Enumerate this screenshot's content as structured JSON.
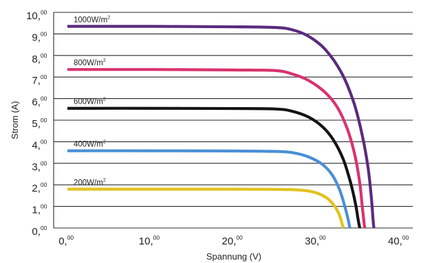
{
  "chart_data": {
    "type": "line",
    "title": "",
    "xlabel": "Spannung (V)",
    "ylabel": "Strom (A)",
    "xlim": [
      0,
      40
    ],
    "ylim": [
      0,
      10
    ],
    "grid": "horizontal",
    "x_ticks": [
      {
        "main": "0,",
        "sup": "00"
      },
      {
        "main": "10,",
        "sup": "00"
      },
      {
        "main": "20,",
        "sup": "00"
      },
      {
        "main": "30,",
        "sup": "00"
      },
      {
        "main": "40,",
        "sup": "00"
      }
    ],
    "y_ticks": [
      {
        "main": "0,",
        "sup": "00"
      },
      {
        "main": "1,",
        "sup": "00"
      },
      {
        "main": "2,",
        "sup": "00"
      },
      {
        "main": "3,",
        "sup": "00"
      },
      {
        "main": "4,",
        "sup": "00"
      },
      {
        "main": "5,",
        "sup": "00"
      },
      {
        "main": "6,",
        "sup": "00"
      },
      {
        "main": "7,",
        "sup": "00"
      },
      {
        "main": "8,",
        "sup": "00"
      },
      {
        "main": "9,",
        "sup": "00"
      },
      {
        "main": "10,",
        "sup": "00"
      }
    ],
    "series": [
      {
        "name": "1000W/m²",
        "label_main": "1000W/m",
        "label_sup": "2",
        "color": "#5b2a7e",
        "points": [
          [
            0,
            9.35
          ],
          [
            10,
            9.35
          ],
          [
            20,
            9.33
          ],
          [
            25,
            9.3
          ],
          [
            27,
            9.2
          ],
          [
            29,
            8.9
          ],
          [
            31,
            8.3
          ],
          [
            33,
            7.2
          ],
          [
            34.5,
            5.8
          ],
          [
            35.5,
            4.3
          ],
          [
            36.2,
            2.8
          ],
          [
            36.6,
            1.4
          ],
          [
            36.8,
            0.4
          ],
          [
            36.9,
            0
          ]
        ]
      },
      {
        "name": "800W/m²",
        "label_main": "800W/m",
        "label_sup": "2",
        "color": "#d9336e",
        "points": [
          [
            0,
            7.35
          ],
          [
            10,
            7.35
          ],
          [
            20,
            7.33
          ],
          [
            25,
            7.3
          ],
          [
            27,
            7.15
          ],
          [
            29,
            6.85
          ],
          [
            31,
            6.3
          ],
          [
            32.5,
            5.6
          ],
          [
            33.7,
            4.6
          ],
          [
            34.6,
            3.4
          ],
          [
            35.2,
            2.1
          ],
          [
            35.5,
            1.0
          ],
          [
            35.7,
            0.3
          ],
          [
            35.8,
            0
          ]
        ]
      },
      {
        "name": "600W/m²",
        "label_main": "600W/m",
        "label_sup": "2",
        "color": "#141414",
        "points": [
          [
            0,
            5.55
          ],
          [
            10,
            5.55
          ],
          [
            20,
            5.54
          ],
          [
            25,
            5.52
          ],
          [
            27,
            5.42
          ],
          [
            29,
            5.15
          ],
          [
            30.7,
            4.7
          ],
          [
            32,
            4.1
          ],
          [
            33.2,
            3.2
          ],
          [
            34.1,
            2.1
          ],
          [
            34.7,
            1.1
          ],
          [
            35,
            0.4
          ],
          [
            35.2,
            0
          ]
        ]
      },
      {
        "name": "400W/m²",
        "label_main": "400W/m",
        "label_sup": "2",
        "color": "#4a8fd6",
        "points": [
          [
            0,
            3.58
          ],
          [
            10,
            3.58
          ],
          [
            20,
            3.57
          ],
          [
            25,
            3.55
          ],
          [
            27,
            3.5
          ],
          [
            29,
            3.3
          ],
          [
            30.7,
            2.95
          ],
          [
            31.9,
            2.45
          ],
          [
            32.8,
            1.75
          ],
          [
            33.4,
            1.0
          ],
          [
            33.8,
            0.4
          ],
          [
            34,
            0
          ]
        ]
      },
      {
        "name": "200W/m²",
        "label_main": "200W/m",
        "label_sup": "2",
        "color": "#e2c21f",
        "points": [
          [
            0,
            1.8
          ],
          [
            10,
            1.8
          ],
          [
            20,
            1.8
          ],
          [
            25,
            1.79
          ],
          [
            28,
            1.76
          ],
          [
            29.8,
            1.65
          ],
          [
            31.2,
            1.4
          ],
          [
            32.1,
            1.05
          ],
          [
            32.7,
            0.65
          ],
          [
            33,
            0.3
          ],
          [
            33.2,
            0
          ]
        ]
      }
    ]
  }
}
